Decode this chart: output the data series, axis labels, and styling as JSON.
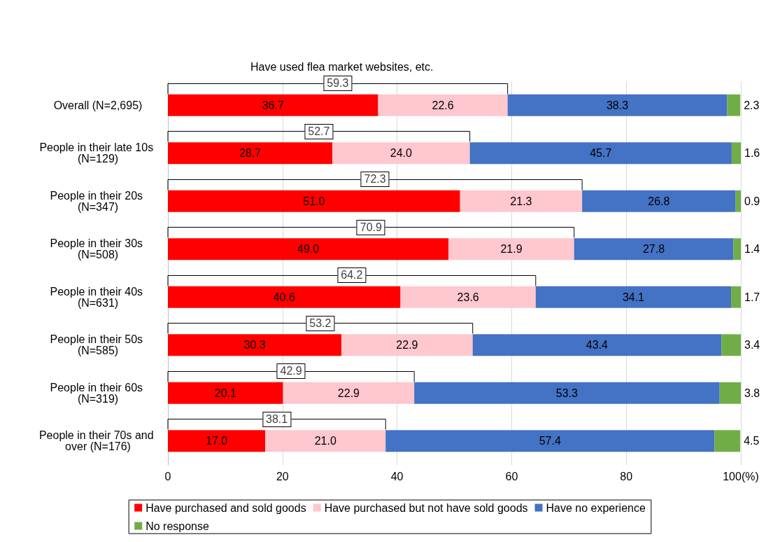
{
  "chart_data": {
    "type": "bar",
    "orientation": "horizontal",
    "stacked": true,
    "categories": [
      "Overall (N=2,695)",
      "People in their late 10s (N=129)",
      "People in their 20s (N=347)",
      "People in their 30s (N=508)",
      "People in their 40s (N=631)",
      "People in their 50s (N=585)",
      "People in their 60s (N=319)",
      "People in their 70s and over (N=176)"
    ],
    "series": [
      {
        "name": "Have purchased and sold goods",
        "color": "#ff0000",
        "values": [
          36.7,
          28.7,
          51.0,
          49.0,
          40.6,
          30.3,
          20.1,
          17.0
        ],
        "value_labels": [
          "36.7",
          "28.7",
          "51.0",
          "49.0",
          "40.6",
          "30.3",
          "20.1",
          "17.0"
        ]
      },
      {
        "name": "Have purchased but not have sold goods",
        "color": "#ffc7ce",
        "values": [
          22.6,
          24.0,
          21.3,
          21.9,
          23.6,
          22.9,
          22.9,
          21.0
        ],
        "value_labels": [
          "22.6",
          "24.0",
          "21.3",
          "21.9",
          "23.6",
          "22.9",
          "22.9",
          "21.0"
        ]
      },
      {
        "name": "Have no experience",
        "color": "#4472c4",
        "values": [
          38.3,
          45.7,
          26.8,
          27.8,
          34.1,
          43.4,
          53.3,
          57.4
        ],
        "value_labels": [
          "38.3",
          "45.7",
          "26.8",
          "27.8",
          "34.1",
          "43.4",
          "53.3",
          "57.4"
        ]
      },
      {
        "name": "No response",
        "color": "#70ad47",
        "values": [
          2.3,
          1.6,
          0.9,
          1.4,
          1.7,
          3.4,
          3.8,
          4.5
        ],
        "value_labels": [
          "2.3",
          "1.6",
          "0.9",
          "1.4",
          "1.7",
          "3.4",
          "3.8",
          "4.5"
        ]
      }
    ],
    "xlim": [
      0,
      100
    ],
    "xticks": [
      0,
      20,
      40,
      60,
      80,
      {
        "value": 100,
        "label": "100(%)"
      }
    ],
    "grid": "x",
    "legend": "bottom",
    "annotations": [
      "Have used flea market websites, etc.",
      "59.3",
      "52.7",
      "72.3",
      "70.9",
      "64.2",
      "53.2",
      "42.9",
      "38.1"
    ]
  }
}
